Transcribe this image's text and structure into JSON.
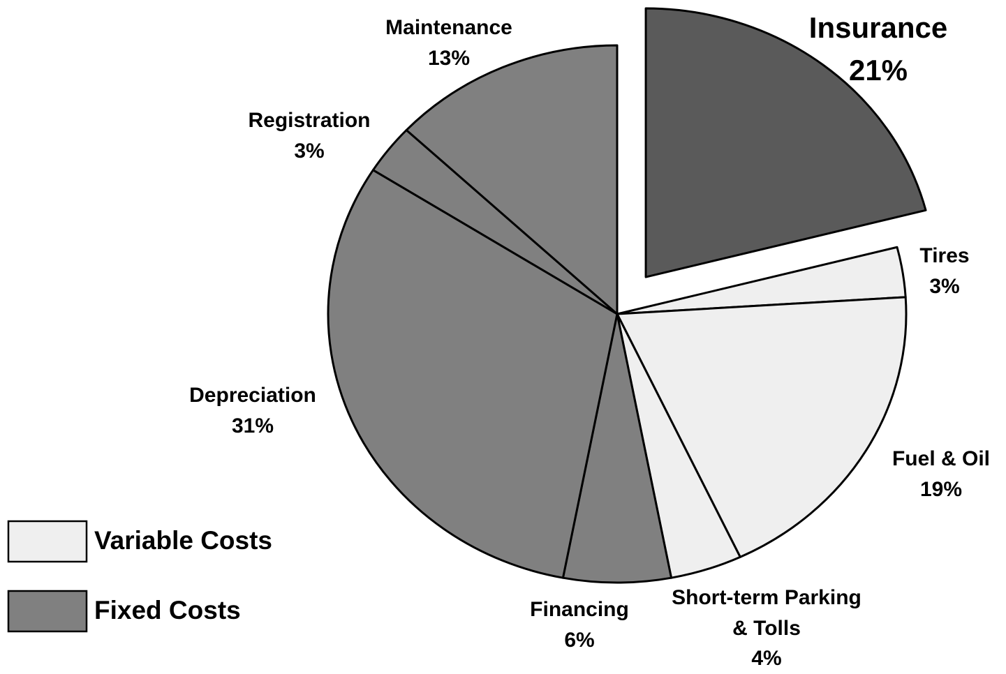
{
  "chart_data": {
    "type": "pie",
    "categories": [
      "Insurance",
      "Tires",
      "Fuel & Oil",
      "Short-term Parking & Tolls",
      "Financing",
      "Depreciation",
      "Registration",
      "Maintenance"
    ],
    "values": [
      21,
      3,
      19,
      4,
      6,
      31,
      3,
      13
    ],
    "value_labels": [
      "21%",
      "3%",
      "19%",
      "4%",
      "6%",
      "31%",
      "3%",
      "13%"
    ],
    "colors": [
      "#5a5a5a",
      "#efefef",
      "#efefef",
      "#efefef",
      "#808080",
      "#808080",
      "#808080",
      "#808080"
    ],
    "exploded": [
      "Insurance"
    ],
    "legend": [
      {
        "name": "Variable Costs",
        "color": "#efefef"
      },
      {
        "name": "Fixed Costs",
        "color": "#808080"
      }
    ]
  }
}
